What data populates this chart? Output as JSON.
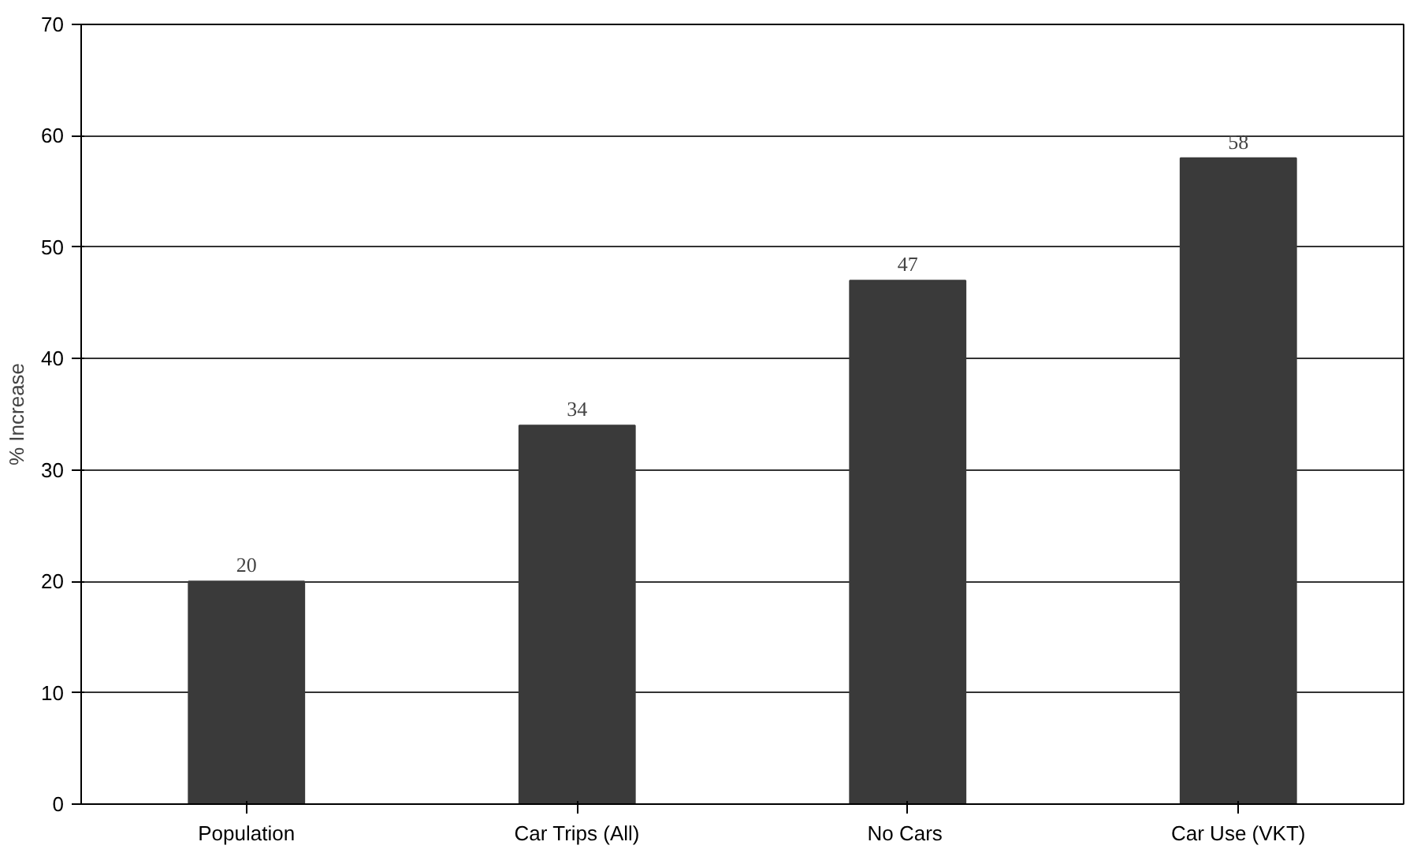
{
  "chart_data": {
    "type": "bar",
    "ylabel": "% Increase",
    "categories": [
      "Population",
      "Car Trips (All)",
      "No  Cars",
      "Car Use (VKT)"
    ],
    "values": [
      20,
      34,
      47,
      58
    ],
    "color": "#3a3a3a",
    "ylim": [
      0,
      70
    ],
    "yticks": [
      0,
      10,
      20,
      30,
      40,
      50,
      60,
      70
    ],
    "grid": "y",
    "data_labels": true
  }
}
